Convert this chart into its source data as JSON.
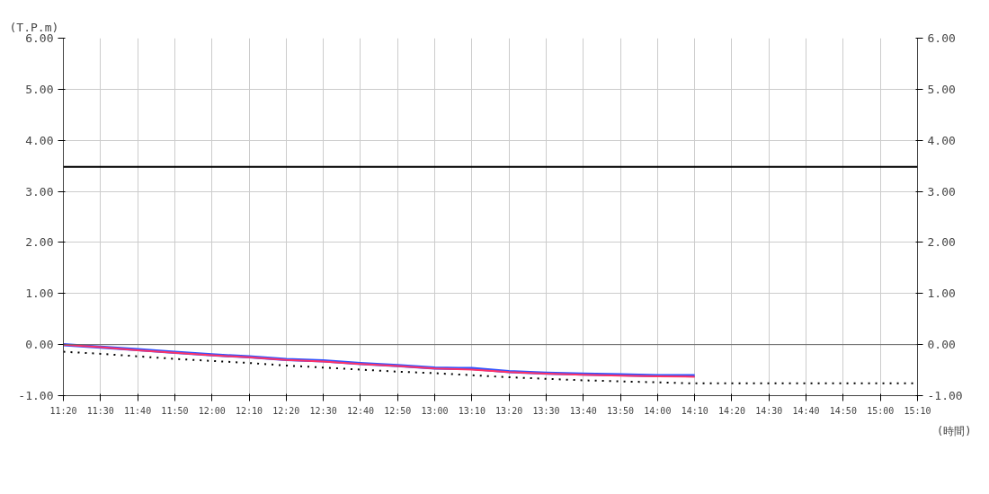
{
  "chart_data": {
    "type": "line",
    "ylabel": "(T.P.m)",
    "xlabel": "(時間)",
    "x": [
      11.3333,
      11.5,
      11.6667,
      11.8333,
      12.0,
      12.1667,
      12.3333,
      12.5,
      12.6667,
      12.8333,
      13.0,
      13.1667,
      13.3333,
      13.5,
      13.6667,
      13.8333,
      14.0,
      14.1667
    ],
    "series": [
      {
        "color": "#3355ff",
        "values": [
          0.0,
          -0.05,
          -0.1,
          -0.15,
          -0.2,
          -0.24,
          -0.29,
          -0.32,
          -0.37,
          -0.41,
          -0.46,
          -0.47,
          -0.53,
          -0.56,
          -0.58,
          -0.59,
          -0.61,
          -0.61
        ]
      },
      {
        "color": "#ff3366",
        "values": [
          0.0,
          -0.05,
          -0.11,
          -0.16,
          -0.21,
          -0.25,
          -0.3,
          -0.33,
          -0.38,
          -0.42,
          -0.47,
          -0.49,
          -0.54,
          -0.57,
          -0.59,
          -0.61,
          -0.62,
          -0.63
        ]
      },
      {
        "color": "#000000",
        "line_style": "dotted",
        "x": [
          11.3333,
          11.5,
          11.6667,
          11.8333,
          12.0,
          12.1667,
          12.3333,
          12.5,
          12.6667,
          12.8333,
          13.0,
          13.1667,
          13.3333,
          13.5,
          13.6667,
          13.8333,
          14.0,
          14.1667,
          14.3333,
          14.5,
          14.6667,
          14.8333,
          15.0,
          15.1667
        ],
        "values": [
          -0.14,
          -0.18,
          -0.23,
          -0.28,
          -0.32,
          -0.36,
          -0.41,
          -0.45,
          -0.49,
          -0.53,
          -0.56,
          -0.6,
          -0.64,
          -0.67,
          -0.7,
          -0.72,
          -0.74,
          -0.76,
          -0.76,
          -0.76,
          -0.76,
          -0.76,
          -0.76,
          -0.76
        ]
      }
    ],
    "xlim": [
      11.3333,
      15.1667
    ],
    "xticks": [
      {
        "value": 11.3333,
        "label": "11:20"
      },
      {
        "value": 11.5,
        "label": "11:30"
      },
      {
        "value": 11.6667,
        "label": "11:40"
      },
      {
        "value": 11.8333,
        "label": "11:50"
      },
      {
        "value": 12.0,
        "label": "12:00"
      },
      {
        "value": 12.1667,
        "label": "12:10"
      },
      {
        "value": 12.3333,
        "label": "12:20"
      },
      {
        "value": 12.5,
        "label": "12:30"
      },
      {
        "value": 12.6667,
        "label": "12:40"
      },
      {
        "value": 12.8333,
        "label": "12:50"
      },
      {
        "value": 13.0,
        "label": "13:00"
      },
      {
        "value": 13.1667,
        "label": "13:10"
      },
      {
        "value": 13.3333,
        "label": "13:20"
      },
      {
        "value": 13.5,
        "label": "13:30"
      },
      {
        "value": 13.6667,
        "label": "13:40"
      },
      {
        "value": 13.8333,
        "label": "13:50"
      },
      {
        "value": 14.0,
        "label": "14:00"
      },
      {
        "value": 14.1667,
        "label": "14:10"
      },
      {
        "value": 14.3333,
        "label": "14:20"
      },
      {
        "value": 14.5,
        "label": "14:30"
      },
      {
        "value": 14.6667,
        "label": "14:40"
      },
      {
        "value": 14.8333,
        "label": "14:50"
      },
      {
        "value": 15.0,
        "label": "15:00"
      },
      {
        "value": 15.1667,
        "label": "15:10"
      }
    ],
    "ylim": [
      -1,
      6
    ],
    "yticks": [
      {
        "value": -1,
        "label": "-1.00"
      },
      {
        "value": 0,
        "label": "0.00"
      },
      {
        "value": 1,
        "label": "1.00"
      },
      {
        "value": 2,
        "label": "2.00"
      },
      {
        "value": 3,
        "label": "3.00"
      },
      {
        "value": 4,
        "label": "4.00"
      },
      {
        "value": 5,
        "label": "5.00"
      },
      {
        "value": 6,
        "label": "6.00"
      }
    ],
    "y2lim": [
      -1,
      6
    ],
    "y2ticks": [
      {
        "value": -1,
        "label": "-1.00"
      },
      {
        "value": 0,
        "label": "0.00"
      },
      {
        "value": 1,
        "label": "1.00"
      },
      {
        "value": 2,
        "label": "2.00"
      },
      {
        "value": 3,
        "label": "3.00"
      },
      {
        "value": 4,
        "label": "4.00"
      },
      {
        "value": 5,
        "label": "5.00"
      },
      {
        "value": 6,
        "label": "6.00"
      }
    ],
    "ref_lines": [
      {
        "axis": "y",
        "value": 3.48,
        "color": "#000000"
      },
      {
        "axis": "y",
        "value": 0,
        "color": "#666666"
      }
    ],
    "grid": true,
    "marker": "none",
    "line_style": "solid"
  }
}
